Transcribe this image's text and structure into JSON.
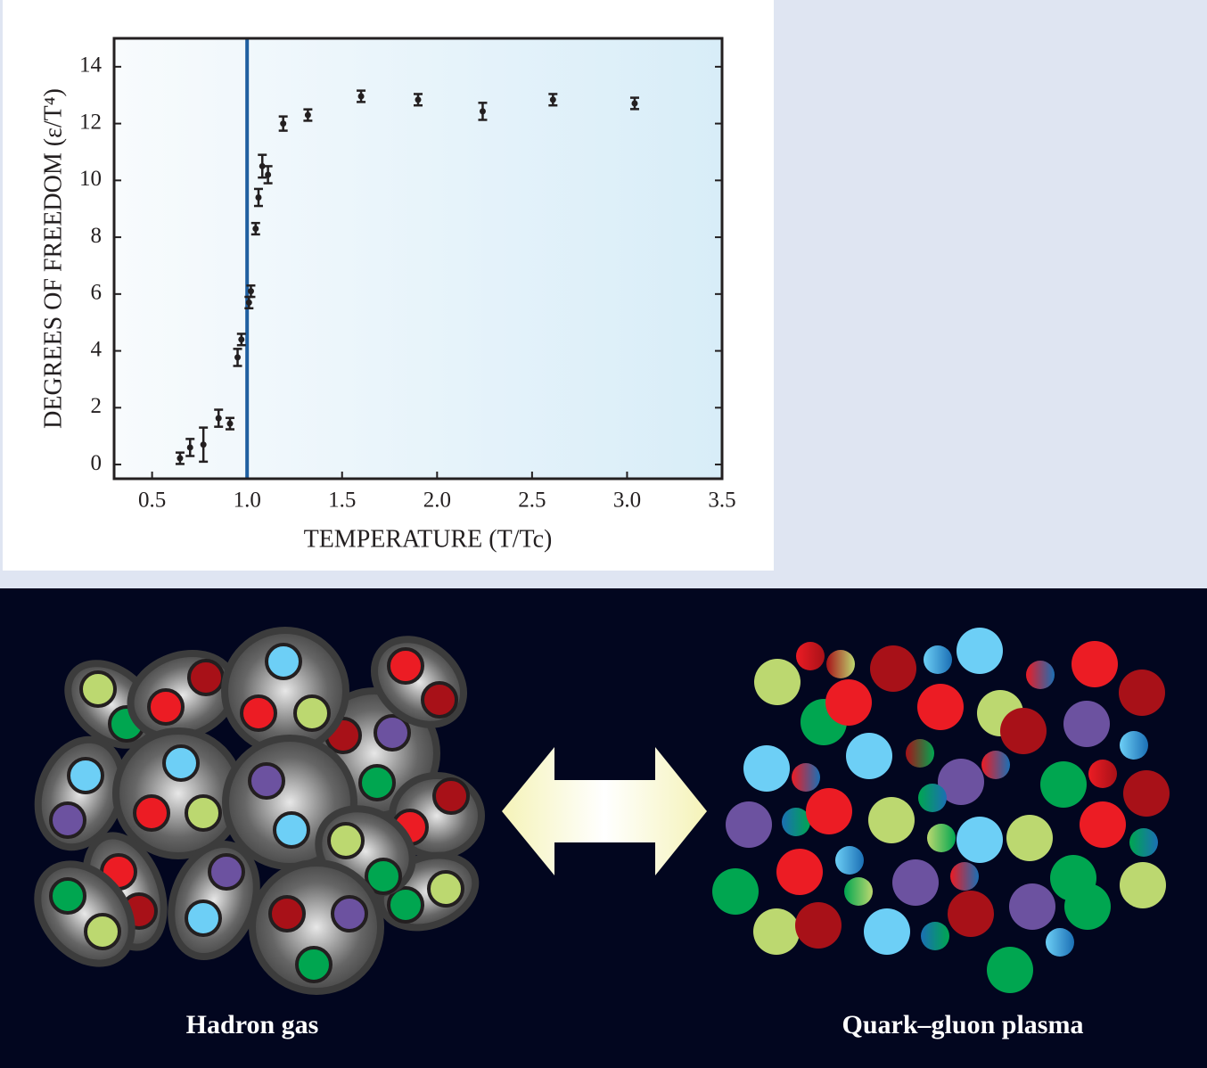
{
  "chart_data": {
    "type": "scatter",
    "x_label": "TEMPERATURE (T/Tc)",
    "y_label": "DEGREES OF FREEDOM (ε/T⁴)",
    "x": [
      0.647,
      0.7,
      0.77,
      0.85,
      0.91,
      0.95,
      0.97,
      1.01,
      1.02,
      1.045,
      1.06,
      1.08,
      1.11,
      1.19,
      1.32,
      1.6,
      1.9,
      2.24,
      2.61,
      3.04
    ],
    "values": [
      0.22,
      0.6,
      0.7,
      1.63,
      1.44,
      3.77,
      4.4,
      5.7,
      6.1,
      8.3,
      9.4,
      10.5,
      10.2,
      12.0,
      12.3,
      12.96,
      12.84,
      12.43,
      12.84,
      12.71
    ],
    "errors": [
      0.2,
      0.3,
      0.6,
      0.3,
      0.2,
      0.3,
      0.2,
      0.2,
      0.2,
      0.2,
      0.3,
      0.4,
      0.3,
      0.25,
      0.2,
      0.2,
      0.2,
      0.3,
      0.2,
      0.2
    ],
    "color": "#231f20",
    "xlim": [
      0.3,
      3.5
    ],
    "ylim": [
      -0.5,
      15
    ],
    "xticks": [
      0.5,
      {
        "value": 1,
        "label": "1.0"
      },
      1.5,
      {
        "value": 2,
        "label": "2.0"
      },
      2.5,
      {
        "value": 3,
        "label": "3.0"
      },
      3.5
    ],
    "yticks": [
      0,
      2,
      4,
      6,
      8,
      10,
      12,
      14
    ],
    "vline": {
      "x": 1,
      "color": "#1f5fa0"
    }
  },
  "illustration": {
    "left_label": "Hadron gas",
    "right_label": "Quark–gluon plasma"
  }
}
